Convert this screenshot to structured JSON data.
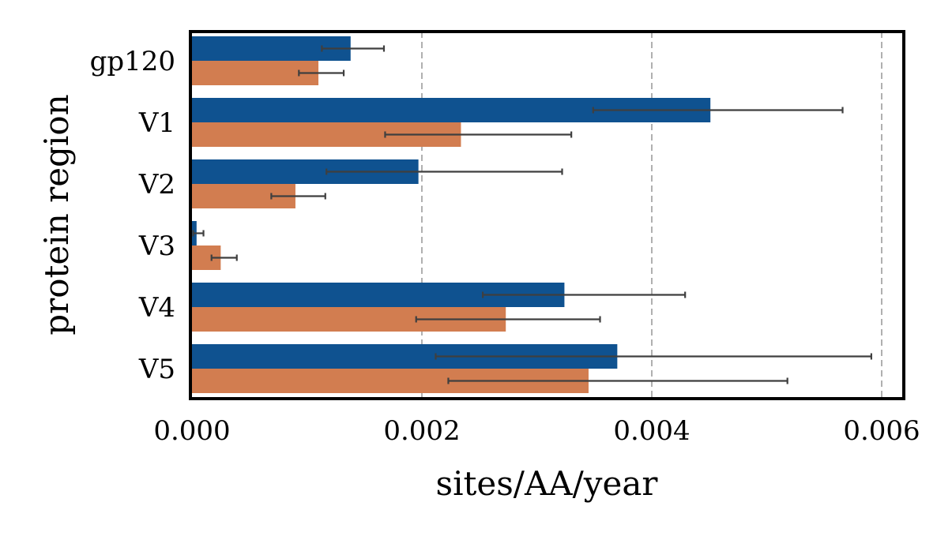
{
  "chart_data": {
    "type": "bar",
    "orientation": "horizontal",
    "categories": [
      "gp120",
      "V1",
      "V2",
      "V3",
      "V4",
      "V5"
    ],
    "series": [
      {
        "color": "#0f5290",
        "values": [
          0.00138,
          0.00451,
          0.00197,
          4e-05,
          0.00324,
          0.0037
        ],
        "errors_low": [
          0.00113,
          0.00349,
          0.00117,
          1e-05,
          0.00253,
          0.00212
        ],
        "errors_high": [
          0.00167,
          0.00566,
          0.00322,
          0.0001,
          0.00429,
          0.00591
        ]
      },
      {
        "color": "#d27d50",
        "values": [
          0.0011,
          0.00234,
          0.0009,
          0.00025,
          0.00273,
          0.00345
        ],
        "errors_low": [
          0.00093,
          0.00168,
          0.00069,
          0.00017,
          0.00195,
          0.00223
        ],
        "errors_high": [
          0.00132,
          0.0033,
          0.00116,
          0.00039,
          0.00355,
          0.00518
        ]
      }
    ],
    "title": "",
    "xlabel": "sites/AA/year",
    "ylabel": "protein region",
    "xlim": [
      0,
      0.00622
    ],
    "xticks": [
      "0.000",
      "0.002",
      "0.004",
      "0.006"
    ],
    "xtick_values": [
      0,
      0.002,
      0.004,
      0.006
    ],
    "grid": "vertical dashed",
    "legend": "none"
  }
}
